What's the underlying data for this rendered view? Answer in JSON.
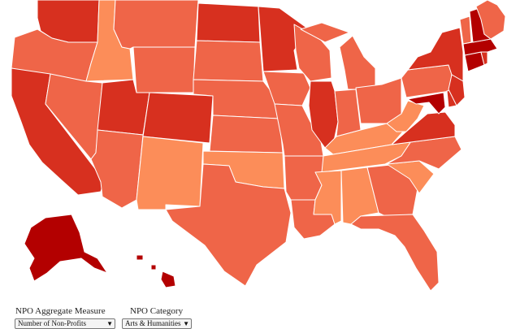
{
  "palette": {
    "level1": "#fc8d59",
    "level2": "#ef6548",
    "level3": "#d7301f",
    "level4": "#b30000"
  },
  "controls": {
    "measure": {
      "label": "NPO Aggregate Measure",
      "value": "Number of Non-Profits"
    },
    "category": {
      "label": "NPO Category",
      "value": "Arts & Humanities"
    }
  },
  "states": [
    {
      "name": "Washington",
      "level": 3
    },
    {
      "name": "Oregon",
      "level": 2
    },
    {
      "name": "California",
      "level": 3
    },
    {
      "name": "Idaho",
      "level": 1
    },
    {
      "name": "Nevada",
      "level": 2
    },
    {
      "name": "Montana",
      "level": 2
    },
    {
      "name": "Wyoming",
      "level": 2
    },
    {
      "name": "Utah",
      "level": 3
    },
    {
      "name": "Arizona",
      "level": 2
    },
    {
      "name": "Colorado",
      "level": 3
    },
    {
      "name": "New Mexico",
      "level": 1
    },
    {
      "name": "North Dakota",
      "level": 3
    },
    {
      "name": "South Dakota",
      "level": 2
    },
    {
      "name": "Nebraska",
      "level": 2
    },
    {
      "name": "Kansas",
      "level": 2
    },
    {
      "name": "Oklahoma",
      "level": 1
    },
    {
      "name": "Texas",
      "level": 2
    },
    {
      "name": "Minnesota",
      "level": 3
    },
    {
      "name": "Iowa",
      "level": 2
    },
    {
      "name": "Missouri",
      "level": 2
    },
    {
      "name": "Arkansas",
      "level": 2
    },
    {
      "name": "Louisiana",
      "level": 2
    },
    {
      "name": "Wisconsin",
      "level": 2
    },
    {
      "name": "Illinois",
      "level": 3
    },
    {
      "name": "Michigan",
      "level": 2
    },
    {
      "name": "Indiana",
      "level": 2
    },
    {
      "name": "Ohio",
      "level": 2
    },
    {
      "name": "Kentucky",
      "level": 1
    },
    {
      "name": "Tennessee",
      "level": 1
    },
    {
      "name": "Mississippi",
      "level": 1
    },
    {
      "name": "Alabama",
      "level": 1
    },
    {
      "name": "Georgia",
      "level": 2
    },
    {
      "name": "Florida",
      "level": 2
    },
    {
      "name": "South Carolina",
      "level": 1
    },
    {
      "name": "North Carolina",
      "level": 2
    },
    {
      "name": "Virginia",
      "level": 3
    },
    {
      "name": "West Virginia",
      "level": 1
    },
    {
      "name": "Pennsylvania",
      "level": 2
    },
    {
      "name": "New York",
      "level": 3
    },
    {
      "name": "Maryland",
      "level": 4
    },
    {
      "name": "Delaware",
      "level": 3
    },
    {
      "name": "New Jersey",
      "level": 3
    },
    {
      "name": "Connecticut",
      "level": 4
    },
    {
      "name": "Rhode Island",
      "level": 3
    },
    {
      "name": "Massachusetts",
      "level": 4
    },
    {
      "name": "Vermont",
      "level": 2
    },
    {
      "name": "New Hampshire",
      "level": 4
    },
    {
      "name": "Maine",
      "level": 2
    },
    {
      "name": "Alaska",
      "level": 4
    },
    {
      "name": "Hawaii",
      "level": 4
    }
  ]
}
